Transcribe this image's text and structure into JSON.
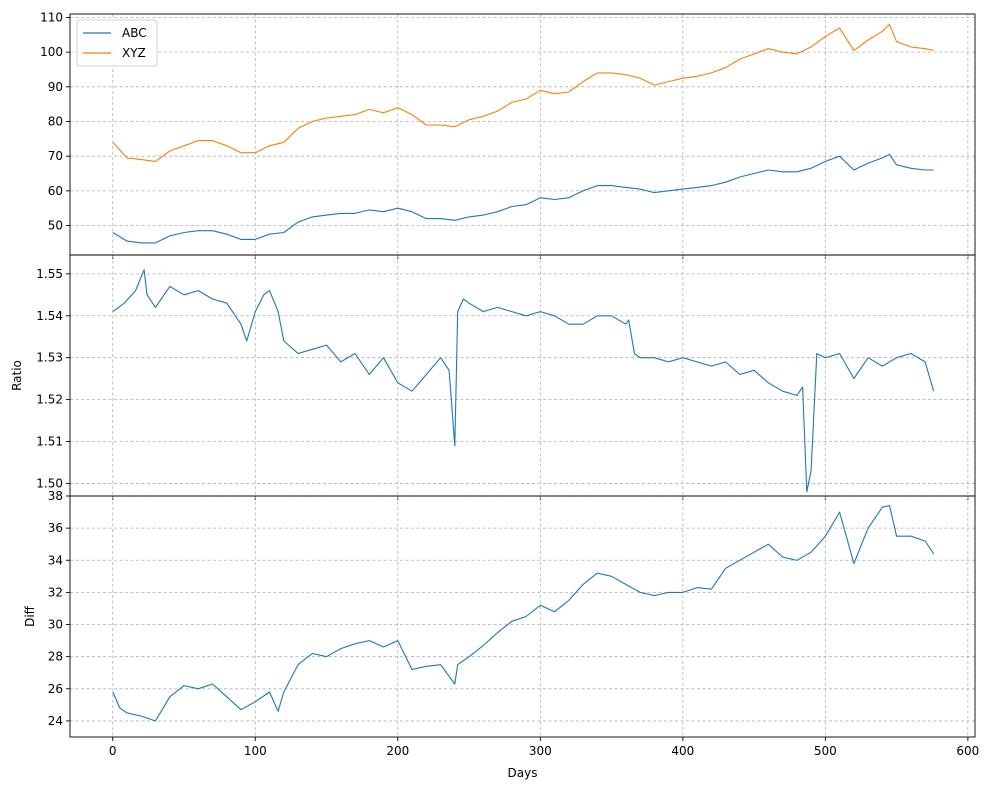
{
  "chart_data": [
    {
      "type": "line",
      "title": "",
      "xlabel": "",
      "ylabel": "",
      "xlim": [
        -30,
        605
      ],
      "ylim": [
        41.5,
        111
      ],
      "xticks": [
        0,
        100,
        200,
        300,
        400,
        500,
        600
      ],
      "xtick_labels": [
        "0",
        "100",
        "200",
        "300",
        "400",
        "500",
        "600"
      ],
      "yticks": [
        50,
        60,
        70,
        80,
        90,
        100,
        110
      ],
      "ytick_labels": [
        "50",
        "60",
        "70",
        "80",
        "90",
        "100",
        "110"
      ],
      "grid": true,
      "legend": "upper-left",
      "series": [
        {
          "name": "ABC",
          "color": "#1f77b4",
          "x": [
            0,
            10,
            20,
            30,
            40,
            50,
            60,
            70,
            80,
            90,
            100,
            110,
            120,
            130,
            140,
            150,
            160,
            170,
            180,
            190,
            200,
            210,
            220,
            230,
            240,
            250,
            260,
            270,
            280,
            290,
            300,
            310,
            320,
            330,
            340,
            350,
            360,
            370,
            380,
            390,
            400,
            410,
            420,
            430,
            440,
            450,
            460,
            470,
            480,
            490,
            500,
            510,
            520,
            530,
            540,
            545,
            550,
            560,
            570,
            576
          ],
          "values": [
            48,
            45.5,
            45,
            45,
            47,
            48,
            48.5,
            48.5,
            47.5,
            46,
            46,
            47.5,
            48,
            51,
            52.5,
            53,
            53.5,
            53.5,
            54.5,
            54,
            55,
            54,
            52,
            52,
            51.5,
            52.5,
            53,
            54,
            55.5,
            56,
            58,
            57.5,
            58,
            60,
            61.5,
            61.5,
            61,
            60.5,
            59.5,
            60,
            60.5,
            61,
            61.5,
            62.5,
            64,
            65,
            66,
            65.5,
            65.5,
            66.5,
            68.5,
            70,
            66,
            68,
            69.5,
            70.5,
            67.5,
            66.5,
            66,
            66
          ]
        },
        {
          "name": "XYZ",
          "color": "#ff7f0e",
          "x": [
            0,
            10,
            20,
            30,
            40,
            50,
            60,
            70,
            80,
            90,
            100,
            110,
            120,
            130,
            140,
            150,
            160,
            170,
            180,
            190,
            200,
            210,
            220,
            230,
            240,
            250,
            260,
            270,
            280,
            290,
            300,
            310,
            320,
            330,
            340,
            350,
            360,
            370,
            380,
            390,
            400,
            410,
            420,
            430,
            440,
            450,
            460,
            470,
            480,
            490,
            500,
            510,
            520,
            530,
            540,
            545,
            550,
            560,
            570,
            576
          ],
          "values": [
            74,
            69.5,
            69,
            68.5,
            71.5,
            73,
            74.5,
            74.5,
            73,
            71,
            71,
            73,
            74,
            78,
            80,
            81,
            81.5,
            82,
            83.5,
            82.5,
            84,
            82,
            79,
            79,
            78.5,
            80.5,
            81.5,
            83,
            85.5,
            86.5,
            89,
            88,
            88.5,
            91.5,
            94,
            94,
            93.5,
            92.5,
            90.5,
            91.5,
            92.5,
            93,
            94,
            95.5,
            98,
            99.5,
            101,
            100,
            99.5,
            101.5,
            104.5,
            107,
            100.5,
            103.5,
            106,
            108,
            103,
            101.5,
            101,
            100.5
          ]
        }
      ]
    },
    {
      "type": "line",
      "title": "",
      "xlabel": "",
      "ylabel": "Ratio",
      "xlim": [
        -30,
        605
      ],
      "ylim": [
        1.497,
        1.5545
      ],
      "yticks": [
        1.5,
        1.51,
        1.52,
        1.53,
        1.54,
        1.55
      ],
      "ytick_labels": [
        "1.50",
        "1.51",
        "1.52",
        "1.53",
        "1.54",
        "1.55"
      ],
      "grid": true,
      "series": [
        {
          "name": "",
          "color": "#1f77b4",
          "x": [
            0,
            8,
            16,
            22,
            24,
            30,
            40,
            50,
            60,
            70,
            80,
            90,
            94,
            100,
            106,
            110,
            116,
            120,
            130,
            140,
            150,
            160,
            170,
            180,
            190,
            200,
            210,
            220,
            230,
            236,
            240,
            242,
            246,
            250,
            260,
            270,
            280,
            290,
            300,
            310,
            320,
            330,
            340,
            350,
            360,
            362,
            366,
            370,
            380,
            390,
            400,
            410,
            420,
            430,
            440,
            450,
            460,
            470,
            480,
            484,
            487,
            490,
            494,
            500,
            510,
            520,
            530,
            540,
            550,
            560,
            570,
            576
          ],
          "values": [
            1.541,
            1.543,
            1.546,
            1.551,
            1.545,
            1.542,
            1.547,
            1.545,
            1.546,
            1.544,
            1.543,
            1.538,
            1.534,
            1.541,
            1.545,
            1.546,
            1.541,
            1.534,
            1.531,
            1.532,
            1.533,
            1.529,
            1.531,
            1.526,
            1.53,
            1.524,
            1.522,
            1.526,
            1.53,
            1.527,
            1.509,
            1.541,
            1.544,
            1.543,
            1.541,
            1.542,
            1.541,
            1.54,
            1.541,
            1.54,
            1.538,
            1.538,
            1.54,
            1.54,
            1.538,
            1.539,
            1.531,
            1.53,
            1.53,
            1.529,
            1.53,
            1.529,
            1.528,
            1.529,
            1.526,
            1.527,
            1.524,
            1.522,
            1.521,
            1.523,
            1.498,
            1.503,
            1.531,
            1.53,
            1.531,
            1.525,
            1.53,
            1.528,
            1.53,
            1.531,
            1.529,
            1.522
          ]
        }
      ]
    },
    {
      "type": "line",
      "title": "",
      "xlabel": "Days",
      "ylabel": "Diff",
      "xlim": [
        -30,
        605
      ],
      "ylim": [
        23,
        38
      ],
      "xticks": [
        0,
        100,
        200,
        300,
        400,
        500,
        600
      ],
      "xtick_labels": [
        "0",
        "100",
        "200",
        "300",
        "400",
        "500",
        "600"
      ],
      "yticks": [
        24,
        26,
        28,
        30,
        32,
        34,
        36,
        38
      ],
      "ytick_labels": [
        "24",
        "26",
        "28",
        "30",
        "32",
        "34",
        "36",
        "38"
      ],
      "grid": true,
      "series": [
        {
          "name": "",
          "color": "#1f77b4",
          "x": [
            0,
            5,
            10,
            20,
            30,
            40,
            50,
            60,
            70,
            80,
            90,
            100,
            110,
            116,
            120,
            130,
            140,
            150,
            160,
            170,
            180,
            190,
            200,
            210,
            220,
            230,
            240,
            242,
            250,
            260,
            270,
            280,
            290,
            300,
            310,
            320,
            330,
            340,
            350,
            360,
            370,
            380,
            390,
            400,
            410,
            420,
            430,
            440,
            450,
            460,
            470,
            480,
            490,
            500,
            510,
            520,
            530,
            540,
            545,
            550,
            560,
            570,
            576
          ],
          "values": [
            25.8,
            24.8,
            24.5,
            24.3,
            24.0,
            25.5,
            26.2,
            26.0,
            26.3,
            25.5,
            24.7,
            25.2,
            25.8,
            24.6,
            25.8,
            27.5,
            28.2,
            28.0,
            28.5,
            28.8,
            29.0,
            28.6,
            29.0,
            27.2,
            27.4,
            27.5,
            26.3,
            27.5,
            28.0,
            28.7,
            29.5,
            30.2,
            30.5,
            31.2,
            30.8,
            31.5,
            32.5,
            33.2,
            33.0,
            32.5,
            32.0,
            31.8,
            32.0,
            32.0,
            32.3,
            32.2,
            33.5,
            34.0,
            34.5,
            35.0,
            34.2,
            34.0,
            34.5,
            35.5,
            37.0,
            33.8,
            36.0,
            37.3,
            37.4,
            35.5,
            35.5,
            35.2,
            34.4
          ]
        }
      ]
    }
  ]
}
